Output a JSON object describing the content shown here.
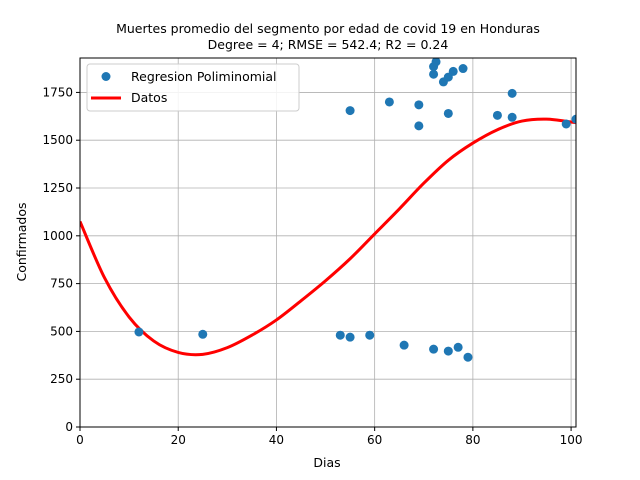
{
  "chart_data": {
    "type": "scatter",
    "title": "Muertes promedio del segmento por  edad de covid 19 en  Honduras",
    "subtitle": "Degree = 4; RMSE = 542.4; R2 = 0.24",
    "xlabel": "Dias",
    "ylabel": "Confirmados",
    "xlim": [
      0,
      101
    ],
    "ylim": [
      0,
      1930
    ],
    "xticks": [
      0,
      20,
      40,
      60,
      80,
      100
    ],
    "yticks": [
      0,
      250,
      500,
      750,
      1000,
      1250,
      1500,
      1750
    ],
    "grid": true,
    "legend_position": "top-left",
    "colors": {
      "points": "#1f77b4",
      "curve": "#ff0000"
    },
    "series": [
      {
        "name": "Regresion Poliminomial",
        "kind": "scatter",
        "x": [
          12,
          25,
          53,
          55,
          55,
          59,
          63,
          66,
          69,
          69,
          72,
          72,
          72,
          72.5,
          74,
          75,
          75,
          75,
          76,
          77,
          78,
          79,
          85,
          88,
          88,
          99,
          101
        ],
        "y": [
          497,
          485,
          480,
          470,
          1655,
          480,
          1700,
          428,
          1685,
          1575,
          407,
          1845,
          1885,
          1910,
          1805,
          1830,
          1640,
          397,
          1860,
          417,
          1875,
          365,
          1630,
          1745,
          1620,
          1585,
          1610
        ]
      },
      {
        "name": "Datos",
        "kind": "line",
        "x": [
          0,
          5,
          10,
          15,
          20,
          25,
          30,
          35,
          40,
          45,
          50,
          55,
          60,
          65,
          70,
          75,
          80,
          85,
          90,
          95,
          100,
          101
        ],
        "y": [
          1075,
          780,
          575,
          450,
          390,
          380,
          415,
          480,
          560,
          660,
          765,
          880,
          1010,
          1140,
          1275,
          1395,
          1485,
          1555,
          1600,
          1610,
          1595,
          1592
        ]
      }
    ]
  }
}
